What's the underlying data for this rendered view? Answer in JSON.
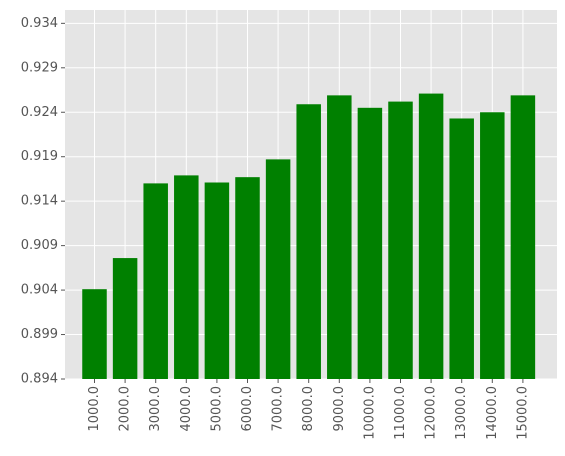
{
  "chart_data": {
    "type": "bar",
    "title": "",
    "xlabel": "",
    "ylabel": "",
    "categories": [
      "1000.0",
      "2000.0",
      "3000.0",
      "4000.0",
      "5000.0",
      "6000.0",
      "7000.0",
      "8000.0",
      "9000.0",
      "10000.0",
      "11000.0",
      "12000.0",
      "13000.0",
      "14000.0",
      "15000.0"
    ],
    "values": [
      0.9041,
      0.9076,
      0.916,
      0.9169,
      0.9161,
      0.9167,
      0.9187,
      0.9249,
      0.9259,
      0.9245,
      0.9252,
      0.9261,
      0.9233,
      0.924,
      0.9259
    ],
    "ylim": [
      0.894,
      0.9355
    ],
    "yticks": [
      "0.894",
      "0.899",
      "0.904",
      "0.909",
      "0.914",
      "0.919",
      "0.924",
      "0.929",
      "0.934"
    ],
    "bar_color": "#008000",
    "grid": true,
    "background": "#e5e5e5",
    "grid_color": "#ffffff",
    "legend": "none"
  }
}
